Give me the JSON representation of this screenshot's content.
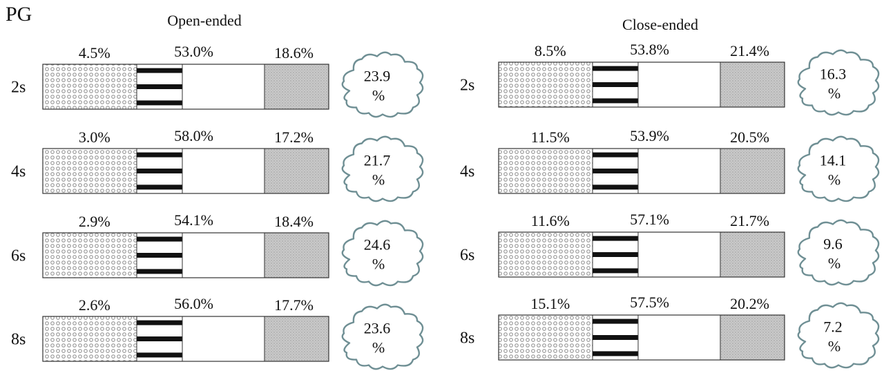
{
  "figure_label": "PG",
  "colors": {
    "stripe": "#111111",
    "border": "#333333",
    "dots": "#8a8a8a",
    "gray": "#c9c9c9",
    "cloud": "#6f8f94"
  },
  "chart_data": [
    {
      "type": "bar",
      "title": "Open-ended",
      "categories": [
        "2s",
        "4s",
        "6s",
        "8s"
      ],
      "series": [
        {
          "values": [
            4.5,
            3.0,
            2.9,
            2.6
          ],
          "labels": [
            "4.5%",
            "3.0%",
            "2.9%",
            "2.6%"
          ]
        },
        {
          "values": [
            53.0,
            58.0,
            54.1,
            56.0
          ],
          "labels": [
            "53.0%",
            "58.0%",
            "54.1%",
            "56.0%"
          ]
        },
        {
          "values": [
            18.6,
            17.2,
            18.4,
            17.7
          ],
          "labels": [
            "18.6%",
            "17.2%",
            "18.4%",
            "17.7%"
          ]
        },
        {
          "values": [
            23.9,
            21.7,
            24.6,
            23.6
          ],
          "labels": [
            "23.9",
            "21.7",
            "24.6",
            "23.6"
          ],
          "unit": "%"
        }
      ]
    },
    {
      "type": "bar",
      "title": "Close-ended",
      "categories": [
        "2s",
        "4s",
        "6s",
        "8s"
      ],
      "series": [
        {
          "values": [
            8.5,
            11.5,
            11.6,
            15.1
          ],
          "labels": [
            "8.5%",
            "11.5%",
            "11.6%",
            "15.1%"
          ]
        },
        {
          "values": [
            53.8,
            53.9,
            57.1,
            57.5
          ],
          "labels": [
            "53.8%",
            "53.9%",
            "57.1%",
            "57.5%"
          ]
        },
        {
          "values": [
            21.4,
            20.5,
            21.7,
            20.2
          ],
          "labels": [
            "21.4%",
            "20.5%",
            "21.7%",
            "20.2%"
          ]
        },
        {
          "values": [
            16.3,
            14.1,
            9.6,
            7.2
          ],
          "labels": [
            "16.3",
            "14.1",
            "9.6",
            "7.2"
          ],
          "unit": "%"
        }
      ]
    }
  ]
}
